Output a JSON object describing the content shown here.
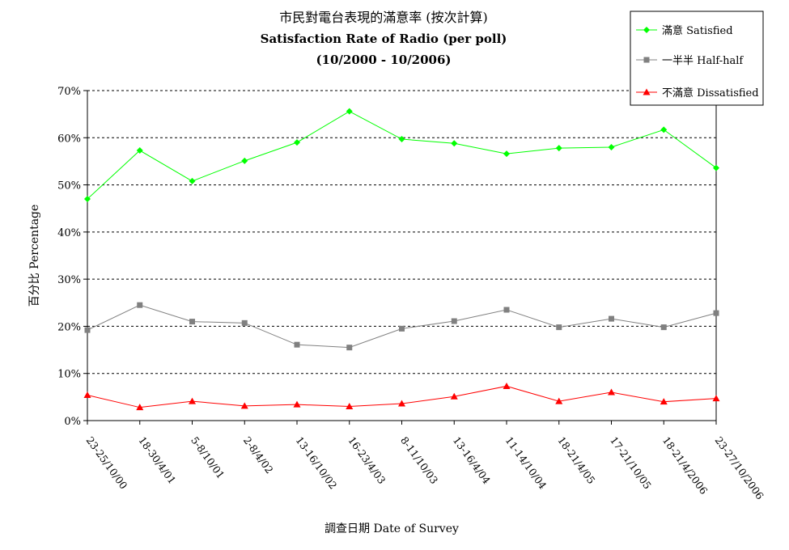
{
  "chart_data": {
    "type": "line",
    "title": "市民對電台表現的滿意率 (按次計算)",
    "subtitle": "Satisfaction Rate of Radio (per poll)",
    "subtitle2": "(10/2000 - 10/2006)",
    "xlabel": "調查日期 Date of Survey",
    "ylabel": "百分比 Percentage",
    "ylim": [
      0,
      70
    ],
    "yticks": [
      "0%",
      "10%",
      "20%",
      "30%",
      "40%",
      "50%",
      "60%",
      "70%"
    ],
    "grid": "horizontal-dashed",
    "legend": "top-right",
    "categories": [
      "23-25/10/00",
      "18-30/4/01",
      "5-8/10/01",
      "2-8/4/02",
      "13-16/10/02",
      "16-23/4/03",
      "8-11/10/03",
      "13-16/4/04",
      "11-14/10/04",
      "18-21/4/05",
      "17-21/10/05",
      "18-21/4/2006",
      "23-27/10/2006"
    ],
    "series": [
      {
        "name": "滿意 Satisfied",
        "color": "#00ff00",
        "marker": "diamond",
        "values": [
          47.0,
          57.3,
          50.8,
          55.1,
          59.0,
          65.6,
          59.7,
          58.8,
          56.6,
          57.8,
          58.0,
          61.7,
          53.6
        ]
      },
      {
        "name": "一半半 Half-half",
        "color": "#808080",
        "marker": "square",
        "values": [
          19.2,
          24.5,
          21.0,
          20.7,
          16.1,
          15.5,
          19.5,
          21.1,
          23.5,
          19.8,
          21.6,
          19.8,
          22.8
        ]
      },
      {
        "name": "不滿意 Dissatisfied",
        "color": "#ff0000",
        "marker": "triangle",
        "values": [
          5.4,
          2.8,
          4.1,
          3.1,
          3.4,
          3.0,
          3.6,
          5.1,
          7.3,
          4.1,
          6.0,
          4.0,
          4.7
        ]
      }
    ]
  }
}
